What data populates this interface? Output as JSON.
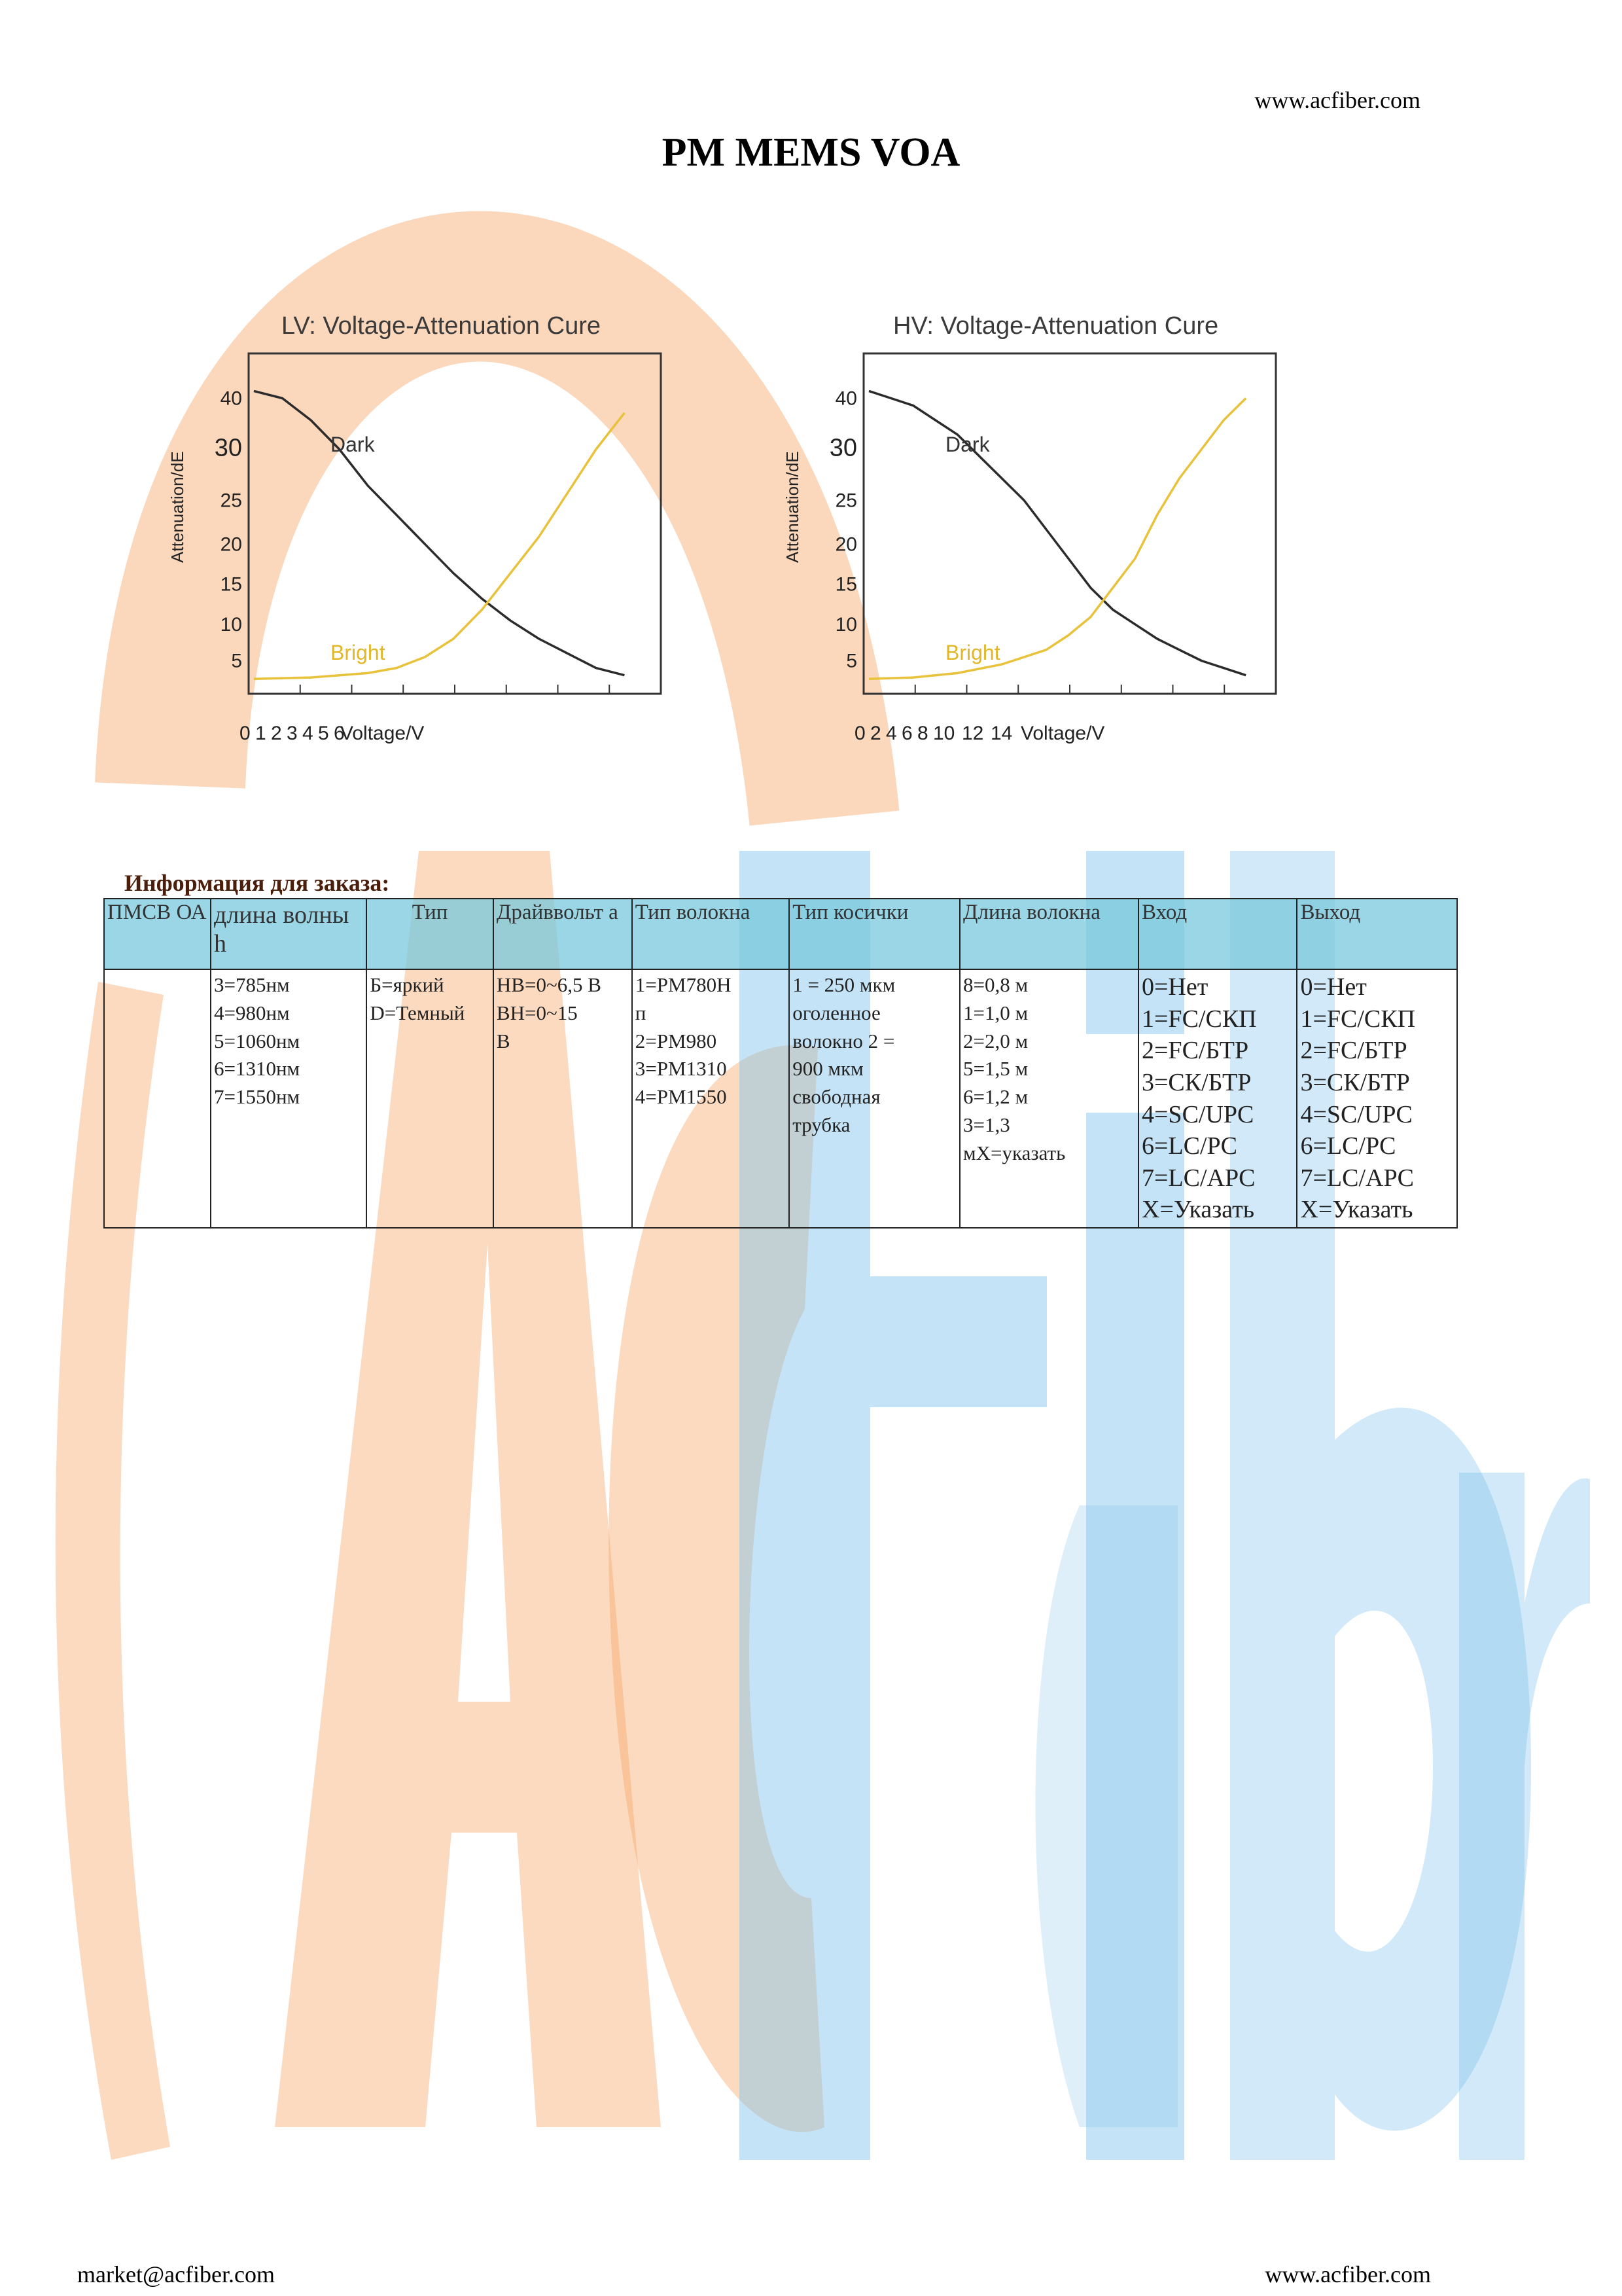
{
  "header": {
    "url": "www.acfiber.com"
  },
  "title": "PM MEMS VOA",
  "watermark": {
    "text": "AcFiber",
    "orange": "#f7a66a",
    "blue": "#7cc0ea"
  },
  "chart_data": [
    {
      "type": "line",
      "title": "LV: Voltage-Attenuation Cure",
      "xlabel": "Voltage/V",
      "ylabel": "Attenuation/dE",
      "x_ticks": [
        "0",
        "1",
        "2",
        "3",
        "4",
        "5",
        "6"
      ],
      "y_ticks": [
        "40",
        "30",
        "25",
        "20",
        "15",
        "10",
        "5"
      ],
      "series": [
        {
          "name": "Dark",
          "color": "#2b2b2b",
          "values": [
            [
              0,
              41
            ],
            [
              0.5,
              40
            ],
            [
              1,
              37
            ],
            [
              1.5,
              33
            ],
            [
              2,
              28
            ],
            [
              2.5,
              24
            ],
            [
              3,
              20
            ],
            [
              3.5,
              16
            ],
            [
              4,
              12.5
            ],
            [
              4.5,
              9.5
            ],
            [
              5,
              7
            ],
            [
              5.5,
              5
            ],
            [
              6,
              3
            ],
            [
              6.5,
              2
            ]
          ]
        },
        {
          "name": "Bright",
          "color": "#e8c23a",
          "values": [
            [
              0,
              1.5
            ],
            [
              1,
              1.7
            ],
            [
              2,
              2.3
            ],
            [
              2.5,
              3
            ],
            [
              3,
              4.5
            ],
            [
              3.5,
              7
            ],
            [
              4,
              11
            ],
            [
              4.5,
              16
            ],
            [
              5,
              21
            ],
            [
              5.5,
              27
            ],
            [
              6,
              33
            ],
            [
              6.5,
              38
            ]
          ]
        }
      ]
    },
    {
      "type": "line",
      "title": "HV: Voltage-Attenuation Cure",
      "xlabel": "Voltage/V",
      "ylabel": "Attenuation/dE",
      "x_ticks": [
        "0",
        "2",
        "4",
        "6",
        "8",
        "10",
        "12",
        "14"
      ],
      "y_ticks": [
        "40",
        "30",
        "25",
        "20",
        "15",
        "10",
        "5"
      ],
      "series": [
        {
          "name": "Dark",
          "color": "#2b2b2b",
          "values": [
            [
              0,
              41
            ],
            [
              1,
              40
            ],
            [
              2,
              39
            ],
            [
              3,
              37
            ],
            [
              4,
              35
            ],
            [
              5,
              32
            ],
            [
              6,
              29
            ],
            [
              7,
              26
            ],
            [
              8,
              22
            ],
            [
              9,
              18
            ],
            [
              10,
              14
            ],
            [
              11,
              11
            ],
            [
              12,
              9
            ],
            [
              13,
              7
            ],
            [
              14,
              5.5
            ],
            [
              15,
              4
            ],
            [
              16,
              3
            ],
            [
              17,
              2
            ]
          ]
        },
        {
          "name": "Bright",
          "color": "#e8c23a",
          "values": [
            [
              0,
              1.5
            ],
            [
              2,
              1.7
            ],
            [
              4,
              2.3
            ],
            [
              6,
              3.5
            ],
            [
              8,
              5.5
            ],
            [
              9,
              7.5
            ],
            [
              10,
              10
            ],
            [
              11,
              14
            ],
            [
              12,
              18
            ],
            [
              13,
              24
            ],
            [
              14,
              29
            ],
            [
              15,
              33
            ],
            [
              16,
              37
            ],
            [
              17,
              40
            ]
          ]
        }
      ]
    }
  ],
  "order_info": {
    "heading": "Информация для заказа",
    "heading_suffix": ":",
    "columns": [
      "ПМСВ ОА",
      "длина волны h",
      "Тип",
      "Драйввольт а",
      "Тип волокна",
      "Тип косички",
      "Длина волокна",
      "Вход",
      "Выход"
    ],
    "cells": [
      [],
      [
        "3=785нм",
        "4=980нм",
        "5=1060нм",
        "6=1310нм",
        "7=1550нм"
      ],
      [
        "Б=яркий",
        "D=Темный"
      ],
      [
        "НВ=0~6,5 В",
        "ВН=0~15",
        "В"
      ],
      [
        "1=PM780H",
        "п",
        "2=PM980",
        "3=PM1310",
        "4=PM1550"
      ],
      [
        "1 = 250 мкм",
        "оголенное",
        "волокно 2 =",
        "900 мкм",
        "свободная",
        "трубка"
      ],
      [
        "8=0,8 м",
        "1=1,0 м",
        "2=2,0 м",
        "5=1,5 м",
        "6=1,2 м",
        "3=1,3",
        "мX=указать"
      ],
      [
        "0=Нет",
        "1=FC/СКП",
        "2=FC/БТР",
        "3=СК/БТР",
        "4=SC/UPC",
        "6=LC/PC",
        "7=LC/APC",
        "X=Указать"
      ],
      [
        "0=Нет",
        "1=FC/СКП",
        "2=FC/БТР",
        "3=СК/БТР",
        "4=SC/UPC",
        "6=LC/PC",
        "7=LC/APC",
        "X=Указать"
      ]
    ]
  },
  "footer": {
    "email": "market@acfiber.com",
    "url": "www.acfiber.com"
  }
}
